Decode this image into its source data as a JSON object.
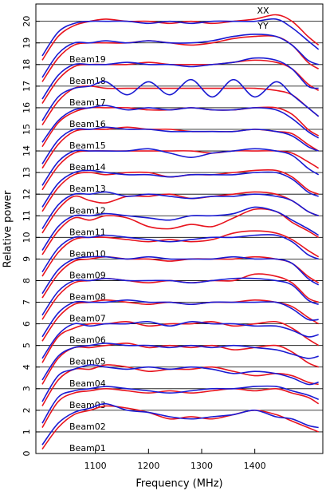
{
  "chart_data": {
    "type": "line",
    "x_label": "Frequency (MHz)",
    "y_label": "Relative power",
    "xlim": [
      988,
      1528
    ],
    "ylim": [
      0,
      20.8
    ],
    "xticks": [
      1100,
      1200,
      1300,
      1400
    ],
    "yticks": [
      0,
      1,
      2,
      3,
      4,
      5,
      6,
      7,
      8,
      9,
      10,
      11,
      12,
      13,
      14,
      15,
      16,
      17,
      18,
      19,
      20
    ],
    "grid": true,
    "beams": [
      "Beam01",
      "Beam02",
      "Beam03",
      "Beam04",
      "Beam05",
      "Beam06",
      "Beam07",
      "Beam08",
      "Beam09",
      "Beam10",
      "Beam11",
      "Beam12",
      "Beam13",
      "Beam14",
      "Beam15",
      "Beam16",
      "Beam17",
      "Beam18",
      "Beam19"
    ],
    "x": [
      1000,
      1030,
      1060,
      1090,
      1120,
      1160,
      1200,
      1240,
      1280,
      1320,
      1360,
      1400,
      1440,
      1470,
      1500,
      1520
    ],
    "series": [
      {
        "name": "XX",
        "color": "#e8141e",
        "values": [
          [
            0.2,
            1.2,
            1.8,
            2.0,
            2.2,
            2.1,
            1.9,
            1.6,
            1.7,
            1.6,
            1.8,
            2.0,
            1.8,
            1.5,
            1.2,
            1.0
          ],
          [
            1.2,
            2.4,
            2.8,
            2.9,
            3.0,
            2.9,
            2.8,
            2.9,
            2.8,
            2.9,
            3.0,
            2.9,
            3.0,
            2.8,
            2.6,
            2.3
          ],
          [
            2.2,
            3.4,
            3.9,
            3.9,
            4.1,
            4.0,
            3.8,
            3.9,
            3.9,
            4.0,
            3.8,
            3.6,
            3.7,
            3.6,
            3.3,
            3.2
          ],
          [
            3.2,
            4.4,
            4.9,
            4.9,
            5.0,
            5.1,
            4.9,
            5.0,
            4.9,
            5.0,
            4.8,
            4.9,
            5.0,
            4.7,
            4.2,
            4.0
          ],
          [
            4.2,
            5.4,
            5.8,
            6.0,
            6.0,
            6.1,
            5.9,
            6.0,
            6.0,
            6.1,
            5.9,
            6.0,
            6.1,
            5.8,
            5.3,
            5.0
          ],
          [
            5.2,
            6.3,
            6.9,
            7.0,
            7.1,
            7.0,
            6.9,
            7.0,
            6.9,
            7.0,
            7.0,
            7.1,
            7.0,
            6.8,
            6.3,
            6.0
          ],
          [
            6.2,
            7.3,
            7.9,
            8.0,
            8.1,
            8.0,
            7.9,
            8.0,
            7.9,
            8.0,
            8.0,
            8.3,
            8.2,
            7.9,
            7.2,
            7.0
          ],
          [
            7.2,
            8.3,
            8.9,
            9.0,
            9.1,
            9.0,
            9.0,
            8.9,
            9.0,
            9.0,
            9.0,
            9.1,
            9.0,
            8.8,
            8.2,
            7.9
          ],
          [
            8.2,
            9.3,
            9.9,
            10.0,
            10.0,
            9.9,
            9.8,
            9.9,
            9.8,
            9.9,
            10.2,
            10.3,
            10.2,
            9.9,
            9.4,
            9.1
          ],
          [
            9.2,
            10.3,
            10.9,
            10.8,
            11.0,
            10.9,
            10.5,
            10.4,
            10.6,
            10.5,
            10.9,
            11.3,
            11.2,
            10.7,
            10.3,
            10.0
          ],
          [
            10.2,
            11.3,
            11.9,
            11.7,
            11.6,
            11.9,
            11.9,
            12.0,
            11.8,
            11.9,
            12.0,
            12.1,
            12.0,
            11.7,
            11.2,
            11.0
          ],
          [
            11.2,
            12.3,
            12.9,
            13.0,
            12.9,
            13.0,
            13.0,
            12.8,
            12.9,
            12.9,
            13.0,
            13.1,
            13.1,
            12.8,
            12.2,
            12.0
          ],
          [
            12.2,
            13.3,
            13.9,
            14.0,
            14.0,
            14.0,
            14.0,
            14.0,
            14.0,
            13.9,
            14.0,
            14.0,
            14.0,
            13.9,
            13.5,
            13.2
          ],
          [
            13.2,
            14.3,
            14.9,
            15.0,
            15.0,
            15.1,
            15.0,
            15.0,
            14.9,
            14.9,
            14.9,
            15.0,
            14.9,
            14.8,
            14.3,
            14.0
          ],
          [
            14.2,
            15.3,
            15.8,
            16.0,
            16.0,
            16.0,
            15.9,
            15.9,
            16.0,
            15.9,
            15.9,
            16.0,
            16.0,
            15.7,
            15.0,
            14.7
          ],
          [
            15.2,
            16.3,
            16.9,
            17.0,
            16.9,
            16.9,
            16.9,
            16.9,
            16.9,
            16.9,
            16.9,
            16.9,
            16.8,
            16.6,
            16.0,
            15.6
          ],
          [
            16.2,
            17.3,
            17.9,
            18.0,
            18.0,
            18.0,
            18.1,
            18.0,
            18.0,
            18.0,
            18.1,
            18.2,
            18.1,
            17.8,
            17.1,
            16.8
          ],
          [
            17.2,
            18.3,
            18.9,
            19.0,
            19.0,
            19.0,
            19.1,
            19.0,
            18.9,
            19.0,
            19.2,
            19.3,
            19.3,
            18.9,
            18.1,
            17.8
          ],
          [
            18.2,
            19.3,
            19.8,
            20.0,
            20.1,
            20.0,
            20.0,
            19.9,
            20.0,
            19.9,
            20.0,
            20.1,
            20.3,
            20.0,
            19.3,
            18.9
          ]
        ]
      },
      {
        "name": "YY",
        "color": "#1a1ad2",
        "values": [
          [
            0.4,
            1.4,
            1.9,
            2.1,
            2.3,
            2.0,
            1.9,
            1.7,
            1.6,
            1.7,
            1.8,
            2.0,
            1.7,
            1.6,
            1.3,
            1.2
          ],
          [
            1.4,
            2.6,
            2.9,
            3.0,
            3.1,
            3.0,
            2.9,
            2.8,
            2.9,
            3.0,
            3.0,
            3.1,
            3.1,
            2.9,
            2.7,
            2.5
          ],
          [
            2.4,
            3.6,
            3.9,
            4.1,
            4.0,
            3.9,
            4.0,
            3.9,
            4.0,
            3.9,
            3.7,
            3.8,
            3.7,
            3.5,
            3.2,
            3.3
          ],
          [
            3.4,
            4.5,
            4.9,
            5.0,
            5.1,
            5.0,
            5.0,
            4.9,
            5.0,
            4.9,
            5.0,
            4.9,
            4.8,
            4.6,
            4.4,
            4.5
          ],
          [
            4.4,
            5.5,
            6.0,
            5.9,
            6.0,
            6.0,
            6.1,
            5.9,
            6.1,
            6.0,
            6.0,
            5.9,
            5.9,
            5.7,
            5.4,
            5.5
          ],
          [
            5.4,
            6.5,
            7.0,
            7.0,
            7.0,
            7.1,
            7.0,
            7.0,
            6.9,
            7.0,
            7.0,
            7.0,
            7.0,
            6.7,
            6.2,
            6.2
          ],
          [
            6.4,
            7.5,
            8.0,
            8.0,
            8.1,
            8.0,
            8.0,
            8.0,
            7.9,
            8.0,
            8.1,
            8.1,
            8.0,
            7.8,
            7.1,
            6.9
          ],
          [
            7.4,
            8.5,
            9.0,
            9.1,
            9.1,
            9.0,
            9.1,
            9.0,
            9.0,
            9.0,
            9.1,
            9.0,
            9.0,
            8.8,
            8.1,
            7.8
          ],
          [
            8.4,
            9.5,
            10.0,
            10.0,
            10.1,
            10.0,
            9.9,
            9.8,
            9.9,
            10.0,
            10.0,
            10.1,
            10.1,
            9.8,
            9.2,
            9.0
          ],
          [
            9.4,
            10.5,
            11.0,
            11.0,
            11.1,
            11.0,
            10.9,
            10.8,
            11.0,
            11.0,
            11.1,
            11.4,
            11.2,
            10.8,
            10.4,
            10.1
          ],
          [
            10.4,
            11.5,
            12.0,
            12.0,
            12.1,
            11.9,
            12.0,
            11.9,
            11.8,
            11.9,
            11.9,
            12.0,
            11.9,
            11.7,
            11.2,
            11.0
          ],
          [
            11.4,
            12.5,
            13.0,
            13.1,
            13.0,
            12.9,
            12.9,
            12.8,
            12.9,
            12.9,
            12.9,
            13.0,
            13.0,
            12.7,
            12.1,
            11.9
          ],
          [
            12.4,
            13.5,
            14.0,
            14.0,
            14.0,
            14.0,
            14.1,
            13.9,
            13.7,
            13.9,
            14.0,
            14.1,
            14.0,
            13.8,
            13.2,
            12.9
          ],
          [
            13.4,
            14.5,
            15.0,
            15.0,
            15.1,
            15.0,
            15.0,
            14.9,
            14.9,
            14.9,
            14.9,
            15.0,
            14.9,
            14.7,
            14.2,
            14.0
          ],
          [
            14.4,
            15.4,
            15.9,
            16.0,
            16.1,
            15.9,
            16.0,
            15.9,
            16.0,
            15.9,
            15.9,
            16.0,
            15.9,
            15.5,
            14.9,
            14.6
          ],
          [
            15.4,
            16.5,
            16.9,
            17.0,
            17.2,
            16.6,
            17.2,
            16.6,
            17.3,
            16.5,
            17.3,
            16.5,
            17.2,
            16.6,
            16.0,
            15.6
          ],
          [
            16.4,
            17.5,
            18.0,
            18.0,
            18.0,
            18.1,
            18.0,
            18.0,
            17.9,
            18.0,
            18.1,
            18.3,
            18.2,
            17.8,
            17.0,
            16.9
          ],
          [
            17.4,
            18.5,
            19.0,
            19.0,
            19.1,
            19.0,
            19.1,
            19.0,
            19.0,
            19.1,
            19.3,
            19.4,
            19.3,
            18.9,
            18.2,
            18.0
          ],
          [
            18.4,
            19.5,
            19.9,
            20.0,
            20.0,
            20.0,
            19.9,
            20.0,
            19.9,
            20.0,
            20.0,
            20.0,
            20.1,
            19.7,
            19.1,
            18.7
          ]
        ]
      }
    ]
  }
}
